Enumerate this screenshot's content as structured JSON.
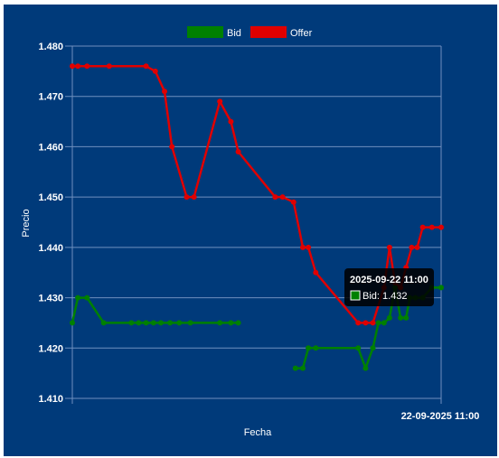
{
  "chart_data": {
    "type": "line",
    "xlabel": "Fecha",
    "ylabel": "Precio",
    "ylim": [
      1.41,
      1.48
    ],
    "y_ticks": [
      "1.410",
      "1.420",
      "1.430",
      "1.440",
      "1.450",
      "1.460",
      "1.470",
      "1.480"
    ],
    "x_tick_label": "22-09-2025 11:00",
    "grid": true,
    "legend_position": "top-center",
    "series": [
      {
        "name": "Bid",
        "color": "#008000",
        "points": [
          [
            0.0,
            1.425
          ],
          [
            1.5,
            1.43
          ],
          [
            4.0,
            1.43
          ],
          [
            8.5,
            1.425
          ],
          [
            16.0,
            1.425
          ],
          [
            18.0,
            1.425
          ],
          [
            20.0,
            1.425
          ],
          [
            22.0,
            1.425
          ],
          [
            24.0,
            1.425
          ],
          [
            26.5,
            1.425
          ],
          [
            29.0,
            1.425
          ],
          [
            32.0,
            1.425
          ],
          [
            40.0,
            1.425
          ],
          [
            43.0,
            1.425
          ],
          [
            45.0,
            1.425
          ],
          [
            55.0,
            null
          ],
          [
            60.5,
            1.416
          ],
          [
            62.5,
            1.416
          ],
          [
            64.0,
            1.42
          ],
          [
            66.0,
            1.42
          ],
          [
            77.5,
            1.42
          ],
          [
            79.5,
            1.416
          ],
          [
            81.5,
            1.42
          ],
          [
            83.0,
            1.425
          ],
          [
            84.5,
            1.425
          ],
          [
            86.0,
            1.426
          ],
          [
            87.5,
            1.432
          ],
          [
            89.0,
            1.426
          ],
          [
            90.5,
            1.426
          ],
          [
            91.5,
            1.43
          ],
          [
            93.0,
            1.43
          ],
          [
            95.0,
            1.43
          ],
          [
            97.5,
            1.432
          ],
          [
            100.0,
            1.432
          ]
        ]
      },
      {
        "name": "Offer",
        "color": "#e00000",
        "points": [
          [
            0.0,
            1.476
          ],
          [
            1.5,
            1.476
          ],
          [
            4.0,
            1.476
          ],
          [
            10.0,
            1.476
          ],
          [
            20.0,
            1.476
          ],
          [
            22.5,
            1.475
          ],
          [
            25.0,
            1.471
          ],
          [
            27.0,
            1.46
          ],
          [
            31.0,
            1.45
          ],
          [
            33.0,
            1.45
          ],
          [
            40.0,
            1.469
          ],
          [
            43.0,
            1.465
          ],
          [
            45.0,
            1.459
          ],
          [
            55.0,
            1.45
          ],
          [
            57.0,
            1.45
          ],
          [
            60.0,
            1.449
          ],
          [
            62.5,
            1.44
          ],
          [
            64.0,
            1.44
          ],
          [
            66.0,
            1.435
          ],
          [
            77.5,
            1.425
          ],
          [
            79.5,
            1.425
          ],
          [
            81.5,
            1.425
          ],
          [
            84.5,
            1.432
          ],
          [
            86.0,
            1.44
          ],
          [
            87.5,
            1.433
          ],
          [
            89.0,
            1.432
          ],
          [
            90.5,
            1.436
          ],
          [
            92.0,
            1.44
          ],
          [
            93.5,
            1.44
          ],
          [
            95.0,
            1.444
          ],
          [
            97.5,
            1.444
          ],
          [
            100.0,
            1.444
          ]
        ]
      }
    ],
    "tooltip": {
      "title": "2025-09-22 11:00",
      "line": "Bid: 1.432"
    }
  }
}
